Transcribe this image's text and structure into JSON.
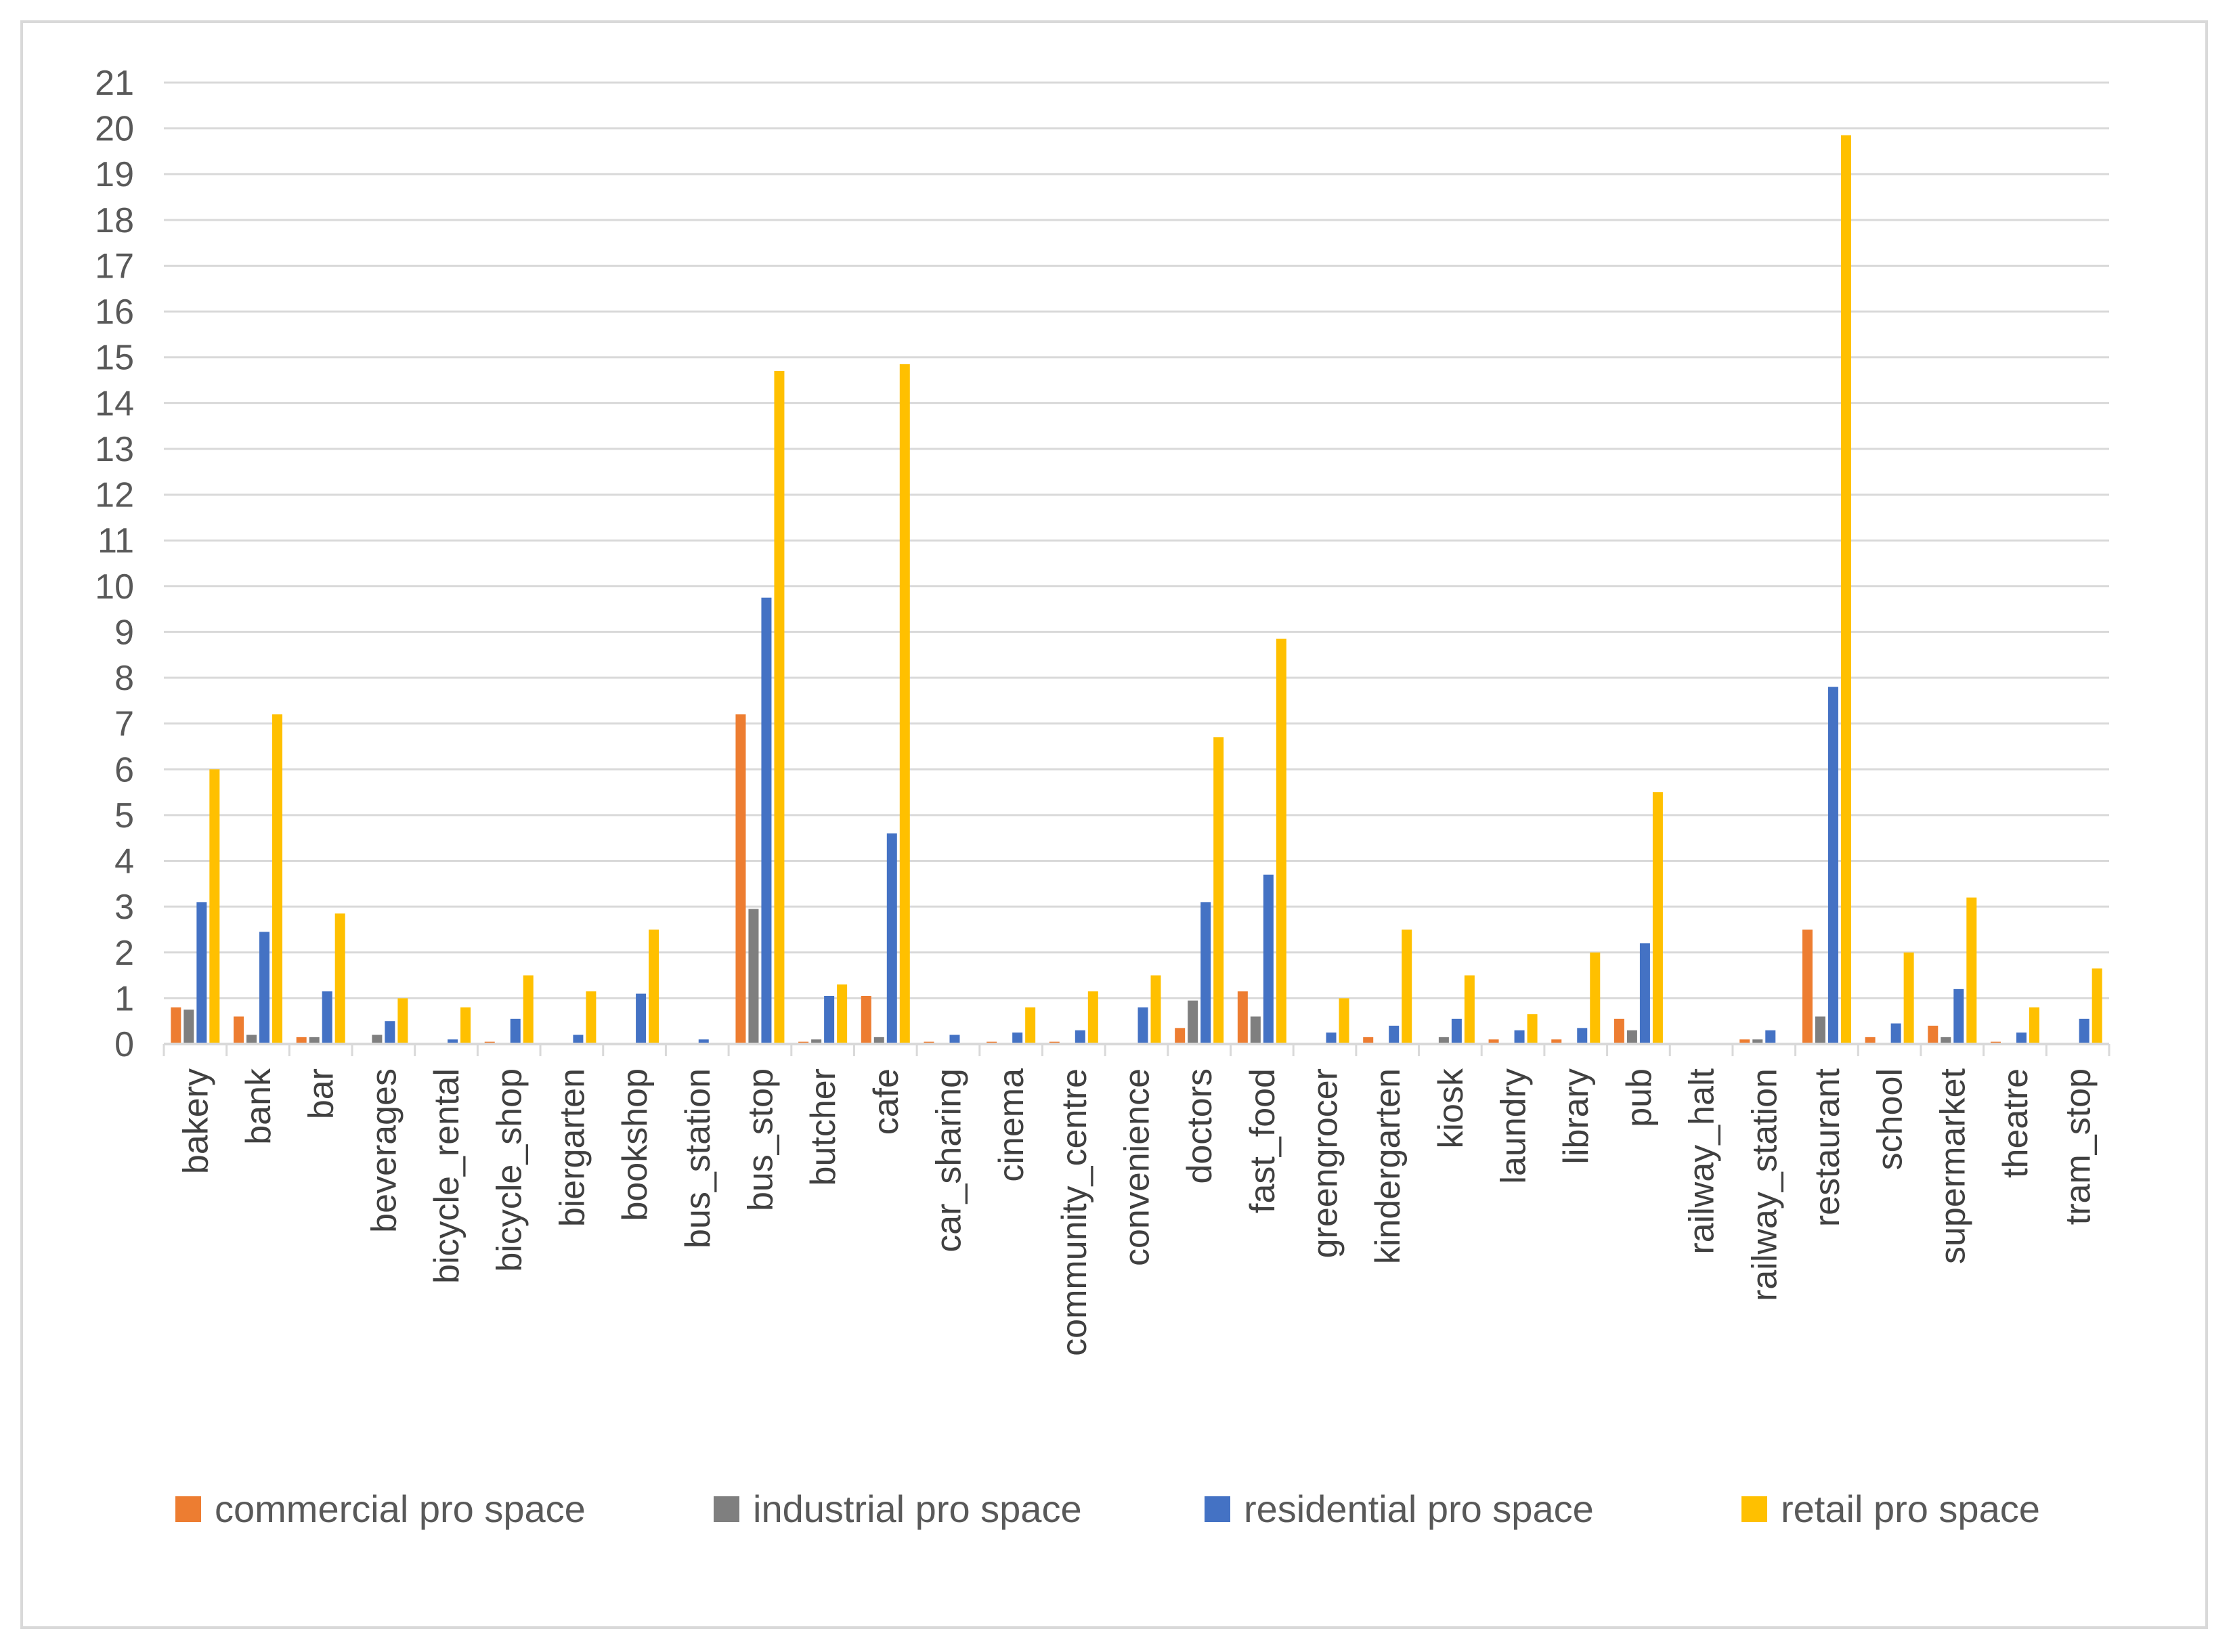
{
  "chart_data": {
    "type": "bar",
    "title": "",
    "xlabel": "",
    "ylabel": "",
    "ylim": [
      0,
      21
    ],
    "yticks": [
      0,
      1,
      2,
      3,
      4,
      5,
      6,
      7,
      8,
      9,
      10,
      11,
      12,
      13,
      14,
      15,
      16,
      17,
      18,
      19,
      20,
      21
    ],
    "grid": true,
    "legend_position": "bottom",
    "categories": [
      "bakery",
      "bank",
      "bar",
      "beverages",
      "bicycle_rental",
      "bicycle_shop",
      "biergarten",
      "bookshop",
      "bus_station",
      "bus_stop",
      "butcher",
      "cafe",
      "car_sharing",
      "cinema",
      "community_centre",
      "convenience",
      "doctors",
      "fast_food",
      "greengrocer",
      "kindergarten",
      "kiosk",
      "laundry",
      "library",
      "pub",
      "railway_halt",
      "railway_station",
      "restaurant",
      "school",
      "supermarket",
      "theatre",
      "tram_stop"
    ],
    "series": [
      {
        "name": "commercial pro space",
        "color": "#ED7D31",
        "values": [
          0.8,
          0.6,
          0.15,
          0.0,
          0.0,
          0.05,
          0.0,
          0.0,
          0.0,
          7.2,
          0.05,
          1.05,
          0.05,
          0.05,
          0.05,
          0.0,
          0.35,
          1.15,
          0.0,
          0.15,
          0.0,
          0.1,
          0.1,
          0.55,
          0.0,
          0.1,
          2.5,
          0.15,
          0.4,
          0.05,
          0.0
        ]
      },
      {
        "name": "industrial pro space",
        "color": "#7F7F7F",
        "values": [
          0.75,
          0.2,
          0.15,
          0.2,
          0.0,
          0.0,
          0.0,
          0.0,
          0.0,
          2.95,
          0.1,
          0.15,
          0.0,
          0.0,
          0.0,
          0.0,
          0.95,
          0.6,
          0.0,
          0.0,
          0.15,
          0.0,
          0.0,
          0.3,
          0.0,
          0.1,
          0.6,
          0.0,
          0.15,
          0.0,
          0.0
        ]
      },
      {
        "name": "residential pro space",
        "color": "#4472C4",
        "values": [
          3.1,
          2.45,
          1.15,
          0.5,
          0.1,
          0.55,
          0.2,
          1.1,
          0.1,
          9.75,
          1.05,
          4.6,
          0.2,
          0.25,
          0.3,
          0.8,
          3.1,
          3.7,
          0.25,
          0.4,
          0.55,
          0.3,
          0.35,
          2.2,
          0.0,
          0.3,
          7.8,
          0.45,
          1.2,
          0.25,
          0.55
        ]
      },
      {
        "name": "retail pro space",
        "color": "#FFC000",
        "values": [
          6.0,
          7.2,
          2.85,
          1.0,
          0.8,
          1.5,
          1.15,
          2.5,
          0.0,
          14.7,
          1.3,
          14.85,
          0.0,
          0.8,
          1.15,
          1.5,
          6.7,
          8.85,
          1.0,
          2.5,
          1.5,
          0.65,
          2.0,
          5.5,
          0.0,
          0.0,
          19.85,
          2.0,
          3.2,
          0.8,
          1.65
        ]
      }
    ]
  }
}
